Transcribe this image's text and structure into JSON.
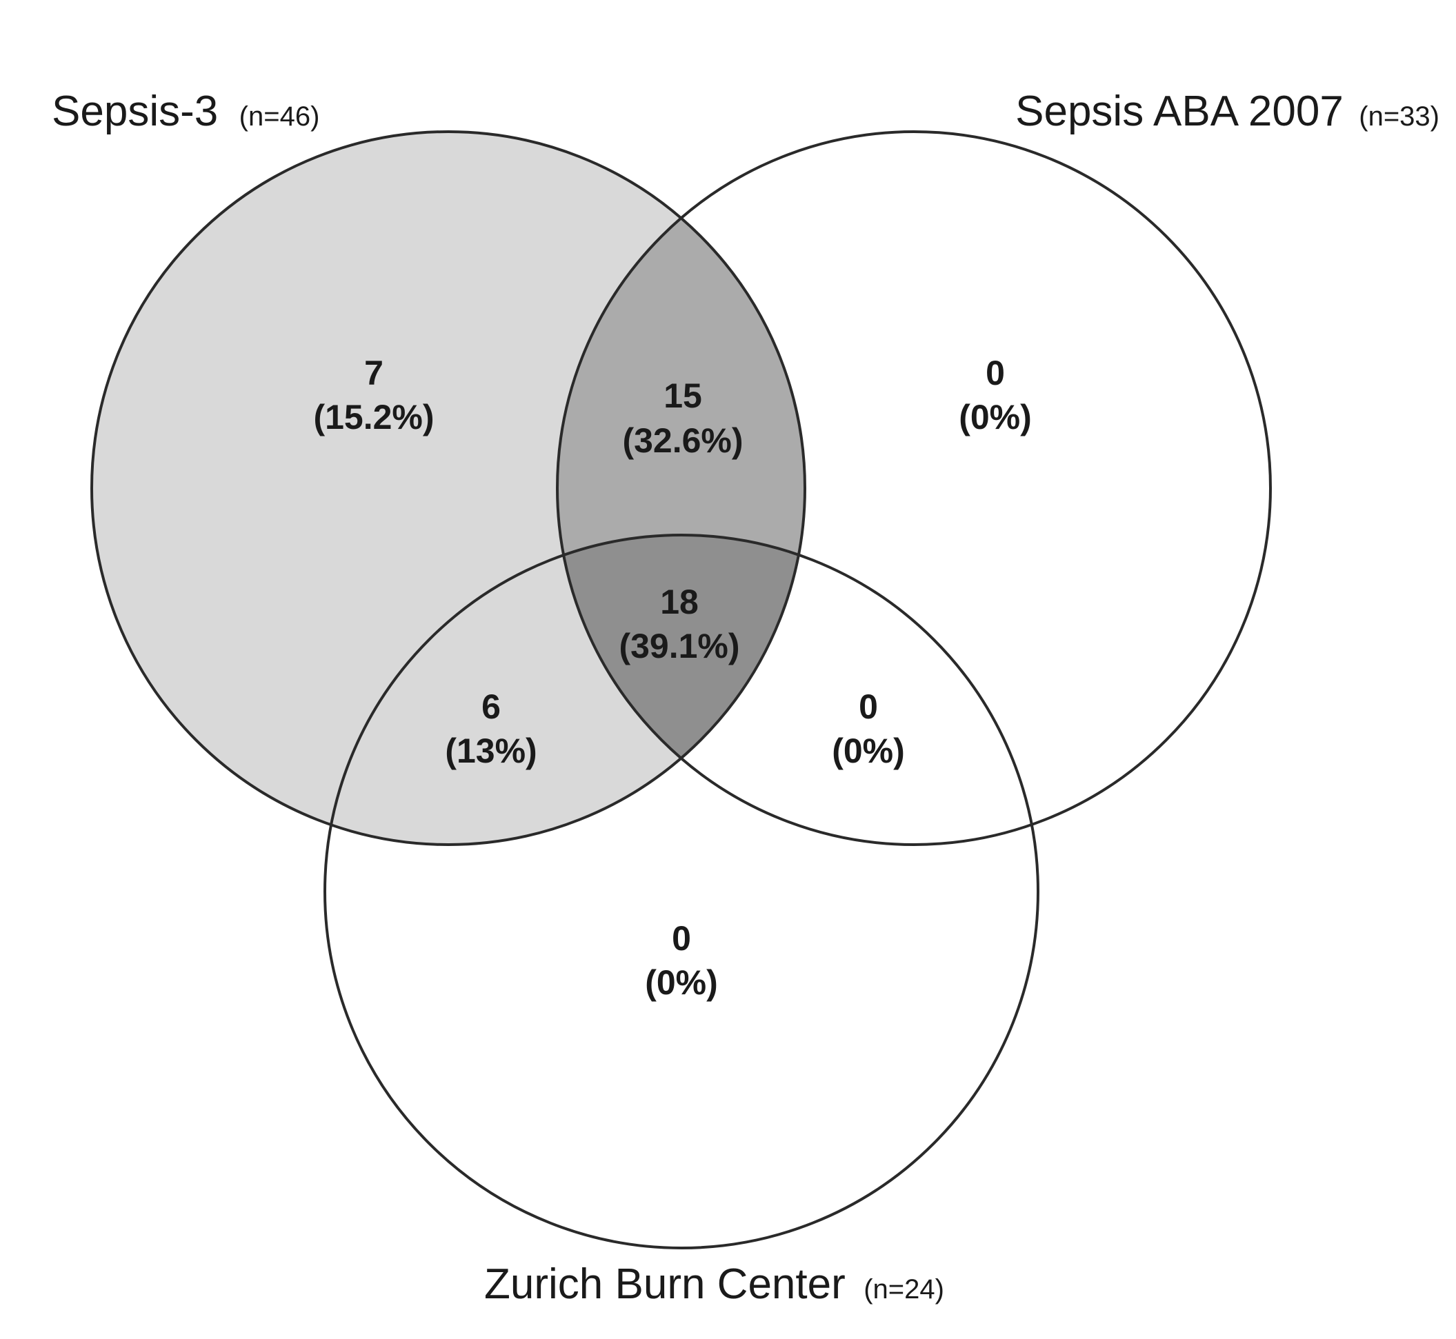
{
  "sets": [
    {
      "key": "A",
      "name": "Sepsis-3",
      "n": "(n=46)"
    },
    {
      "key": "B",
      "name": "Sepsis ABA 2007",
      "n": "(n=33)"
    },
    {
      "key": "C",
      "name": "Zurich Burn Center",
      "n": "(n=24)"
    }
  ],
  "regions": {
    "a_only": {
      "count": "7",
      "pct": "(15.2%)"
    },
    "ab_only": {
      "count": "15",
      "pct": "(32.6%)"
    },
    "b_only": {
      "count": "0",
      "pct": "(0%)"
    },
    "abc": {
      "count": "18",
      "pct": "(39.1%)"
    },
    "ac_only": {
      "count": "6",
      "pct": "(13%)"
    },
    "bc_only": {
      "count": "0",
      "pct": "(0%)"
    },
    "c_only": {
      "count": "0",
      "pct": "(0%)"
    }
  },
  "colors": {
    "single_shade": "#d9d9d9",
    "double_shade": "#ababab",
    "triple_shade": "#8f8f8f",
    "outline": "#2a2a2a",
    "text": "#1a1a1a"
  }
}
